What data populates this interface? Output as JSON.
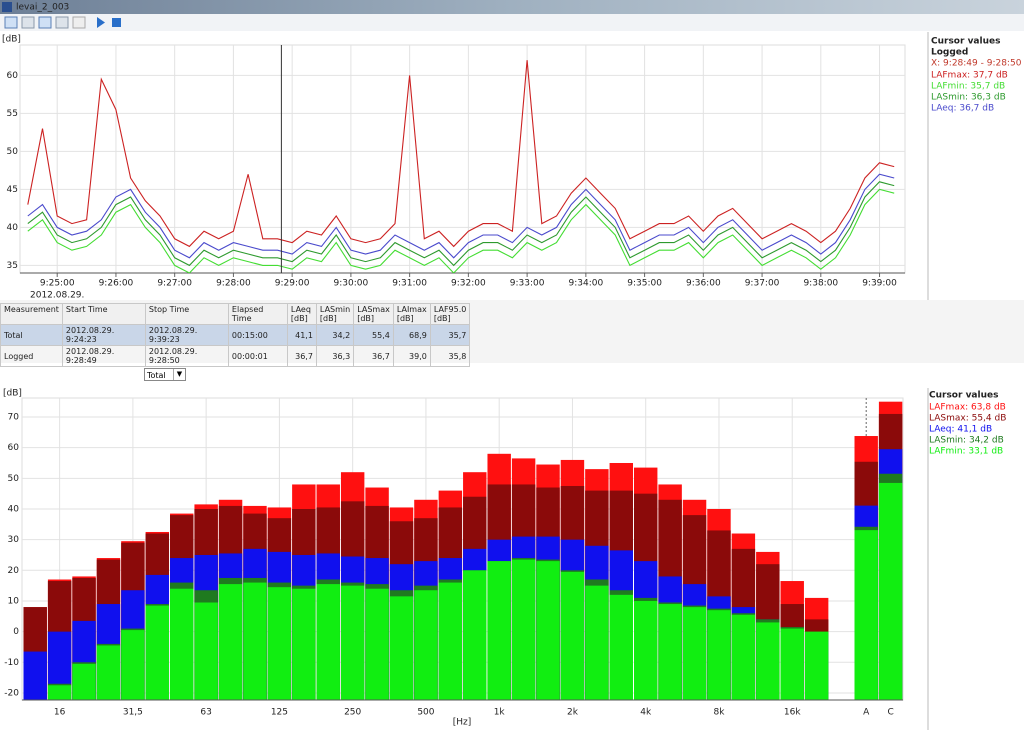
{
  "window": {
    "title": "levai_2_003"
  },
  "chart_data": [
    {
      "type": "line",
      "ylabel": "[dB]",
      "x_sublabel": "2012.08.29.",
      "cursor_title": "Cursor values",
      "cursor_group": "Logged",
      "cursor_x_label": "X: 9:28:49 - 9:28:50",
      "cursor_x": "9:28:49",
      "cursor_x_color": "#c0392b",
      "xlim": [
        "9:24:22",
        "9:39:26"
      ],
      "ylim": [
        34,
        64
      ],
      "xticks": [
        "9:25:00",
        "9:26:00",
        "9:27:00",
        "9:28:00",
        "9:29:00",
        "9:30:00",
        "9:31:00",
        "9:32:00",
        "9:33:00",
        "9:34:00",
        "9:35:00",
        "9:36:00",
        "9:37:00",
        "9:38:00",
        "9:39:00"
      ],
      "yticks": [
        35,
        40,
        45,
        50,
        55,
        60
      ],
      "grid": true,
      "x": [
        "9:24:30",
        "9:24:45",
        "9:25:00",
        "9:25:15",
        "9:25:30",
        "9:25:45",
        "9:26:00",
        "9:26:15",
        "9:26:30",
        "9:26:45",
        "9:27:00",
        "9:27:15",
        "9:27:30",
        "9:27:45",
        "9:28:00",
        "9:28:15",
        "9:28:30",
        "9:28:45",
        "9:29:00",
        "9:29:15",
        "9:29:30",
        "9:29:45",
        "9:30:00",
        "9:30:15",
        "9:30:30",
        "9:30:45",
        "9:31:00",
        "9:31:15",
        "9:31:30",
        "9:31:45",
        "9:32:00",
        "9:32:15",
        "9:32:30",
        "9:32:45",
        "9:33:00",
        "9:33:15",
        "9:33:30",
        "9:33:45",
        "9:34:00",
        "9:34:15",
        "9:34:30",
        "9:34:45",
        "9:35:00",
        "9:35:15",
        "9:35:30",
        "9:35:45",
        "9:36:00",
        "9:36:15",
        "9:36:30",
        "9:36:45",
        "9:37:00",
        "9:37:15",
        "9:37:30",
        "9:37:45",
        "9:38:00",
        "9:38:15",
        "9:38:30",
        "9:38:45",
        "9:39:00",
        "9:39:15"
      ],
      "series": [
        {
          "label": "LAFmax: 37,7 dB",
          "color": "#cc2222",
          "values": [
            43,
            53,
            41.5,
            40.5,
            41,
            59.5,
            55.5,
            46.5,
            43.5,
            41.5,
            38.5,
            37.5,
            39.5,
            38.5,
            39.5,
            47,
            38.5,
            38.5,
            38,
            39.5,
            39,
            41.5,
            38.5,
            38,
            38.5,
            40.5,
            60,
            38.5,
            39.5,
            37.5,
            39.5,
            40.5,
            40.5,
            39.5,
            62,
            40.5,
            41.5,
            44.5,
            46.5,
            44.5,
            42.5,
            38.5,
            39.5,
            40.5,
            40.5,
            41.5,
            39.5,
            41.5,
            42.5,
            40.5,
            38.5,
            39.5,
            40.5,
            39.5,
            38,
            39.5,
            42.5,
            46.5,
            48.5,
            48
          ]
        },
        {
          "label": "LAFmin: 35,7 dB",
          "color": "#44dd33",
          "values": [
            39.5,
            41,
            38,
            37,
            37.5,
            39,
            42,
            43,
            40,
            38,
            35,
            34,
            36,
            35,
            36,
            35.5,
            35,
            35,
            34.5,
            36,
            35.5,
            38,
            35,
            34.5,
            35,
            37,
            36,
            35,
            36,
            34,
            36,
            37,
            37,
            36,
            38,
            37,
            38,
            41,
            43,
            41,
            39,
            35,
            36,
            37,
            37,
            38,
            36,
            38,
            39,
            37,
            35,
            36,
            37,
            36,
            34.5,
            36,
            39,
            43,
            45,
            44.5
          ]
        },
        {
          "label": "LASmin: 36,3 dB",
          "color": "#2e9a2e",
          "values": [
            40.5,
            42,
            39,
            38,
            38.5,
            40,
            43,
            44,
            41,
            39,
            36,
            35,
            37,
            36,
            37,
            36.5,
            36,
            36,
            35.5,
            37,
            36.5,
            39,
            36,
            35.5,
            36,
            38,
            37,
            36,
            37,
            35,
            37,
            38,
            38,
            37,
            39,
            38,
            39,
            42,
            44,
            42,
            40,
            36,
            37,
            38,
            38,
            39,
            37,
            39,
            40,
            38,
            36,
            37,
            38,
            37,
            35.5,
            37,
            40,
            44,
            46,
            45.5
          ]
        },
        {
          "label": "LAeq: 36,7 dB",
          "color": "#4a4acc",
          "values": [
            41.5,
            43,
            40,
            39,
            39.5,
            41,
            44,
            45,
            42,
            40,
            37,
            36,
            38,
            37,
            38,
            37.5,
            37,
            37,
            36.5,
            38,
            37.5,
            40,
            37,
            36.5,
            37,
            39,
            38,
            37,
            38,
            36,
            38,
            39,
            39,
            38,
            40,
            39,
            40,
            43,
            45,
            43,
            41,
            37,
            38,
            39,
            39,
            40,
            38,
            40,
            41,
            39,
            37,
            38,
            39,
            38,
            36.5,
            38,
            41,
            45,
            47,
            46.5
          ]
        }
      ]
    },
    {
      "type": "bar",
      "mode": "overlaid",
      "ylabel": "[dB]",
      "xlabel": "[Hz]",
      "cursor_title": "Cursor values",
      "ylim": [
        -22.3,
        76.2
      ],
      "yticks": [
        -20,
        -10,
        0,
        10,
        20,
        30,
        40,
        50,
        60,
        70
      ],
      "grid": true,
      "categories": [
        null,
        "16",
        null,
        null,
        "31,5",
        null,
        null,
        "63",
        null,
        null,
        "125",
        null,
        null,
        "250",
        null,
        null,
        "500",
        null,
        null,
        "1k",
        null,
        null,
        "2k",
        null,
        null,
        "4k",
        null,
        null,
        "8k",
        null,
        null,
        "16k",
        null
      ],
      "overall_categories": [
        "A",
        "C"
      ],
      "series": [
        {
          "label": "LAFmax: 63,8 dB",
          "color": "#ff1010",
          "values": [
            8,
            17,
            18,
            24,
            29.5,
            32.5,
            38.5,
            41.5,
            43,
            41,
            40.5,
            48,
            48,
            52,
            47,
            40.5,
            43,
            46,
            52,
            58,
            56.5,
            54.5,
            56,
            53,
            55,
            53.5,
            48,
            43,
            40,
            32,
            26,
            16.5,
            11
          ],
          "overall_values": [
            63.8,
            75
          ]
        },
        {
          "label": "LASmax: 55,4 dB",
          "color": "#8b0a0a",
          "values": [
            8,
            16.5,
            17.5,
            23.5,
            29,
            32,
            38,
            40,
            41,
            38.5,
            37,
            40,
            40.5,
            42.5,
            41,
            36,
            37,
            40.5,
            44,
            48,
            48,
            47,
            47.5,
            46,
            46,
            45,
            43,
            38,
            33,
            27,
            22,
            9,
            4
          ],
          "overall_values": [
            55.4,
            71
          ]
        },
        {
          "label": "LAeq: 41,1 dB",
          "color": "#1010ee",
          "values": [
            -6.5,
            0,
            3.5,
            9,
            13.5,
            18.5,
            24,
            25,
            25.5,
            27,
            26,
            25,
            25.5,
            24.5,
            24,
            22,
            23,
            24,
            27,
            30,
            31,
            31,
            30,
            28,
            26.5,
            23,
            18,
            15.5,
            11.5,
            8,
            4,
            1,
            -0.5
          ],
          "overall_values": [
            41.1,
            59.5
          ]
        },
        {
          "label": "LASmin: 34,2 dB",
          "color": "#1f7a1f",
          "values": [
            -23,
            -17,
            -10,
            -4,
            1,
            9,
            16,
            13.5,
            17.5,
            17.5,
            16,
            15,
            17,
            16,
            15.5,
            13.5,
            15,
            17,
            20,
            23,
            24,
            23.5,
            20,
            17,
            13.5,
            11,
            9.5,
            8.5,
            7.5,
            6,
            4,
            1.5,
            0
          ],
          "overall_values": [
            34.2,
            51.5
          ]
        },
        {
          "label": "LAFmin: 33,1 dB",
          "color": "#11ee11",
          "values": [
            -23,
            -17.5,
            -10.5,
            -4.5,
            0.5,
            8.5,
            14,
            9.5,
            15.5,
            16,
            14.5,
            14,
            15.5,
            15,
            14,
            11.5,
            13.5,
            16,
            20,
            23,
            23.5,
            23,
            19.5,
            15,
            12,
            10,
            9,
            8,
            7,
            5.5,
            3,
            1,
            0
          ],
          "overall_values": [
            33.1,
            48.5
          ]
        }
      ]
    }
  ],
  "table": {
    "columns": [
      "Measurement",
      "Start Time",
      "Stop Time",
      "Elapsed Time",
      "LAeq [dB]",
      "LASmin [dB]",
      "LASmax [dB]",
      "LAImax [dB]",
      "LAF95.0 [dB]"
    ],
    "rows": [
      [
        "Total",
        "2012.08.29. 9:24:23",
        "2012.08.29. 9:39:23",
        "00:15:00",
        "41,1",
        "34,2",
        "55,4",
        "68,9",
        "35,7"
      ],
      [
        "Logged",
        "2012.08.29. 9:28:49",
        "2012.08.29. 9:28:50",
        "00:00:01",
        "36,7",
        "36,3",
        "36,7",
        "39,0",
        "35,8"
      ]
    ]
  },
  "selector": {
    "value": "Total"
  }
}
